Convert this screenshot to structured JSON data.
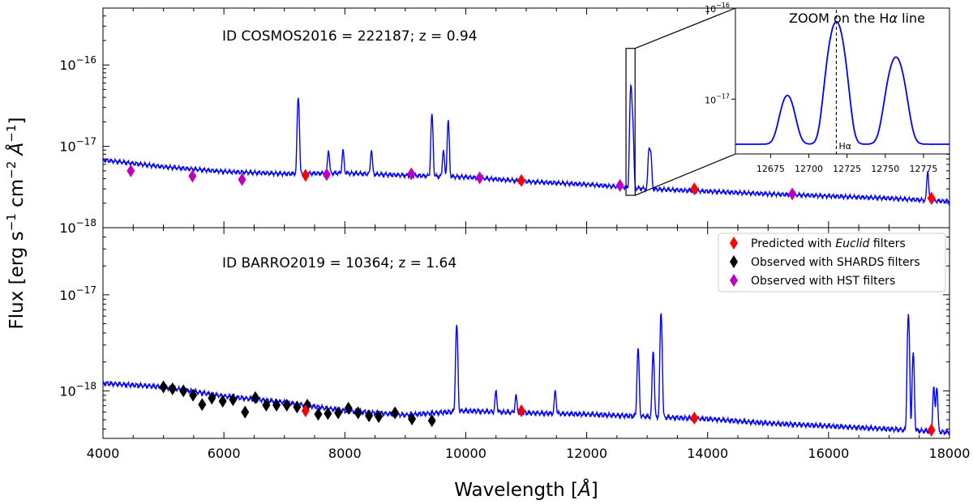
{
  "chart_data": {
    "type": "line",
    "xlabel": "Wavelength [",
    "xlabel_unit": "Å",
    "ylabel": "Flux [erg s",
    "ylabel_parts": [
      "Flux [erg s",
      "−1",
      " cm",
      "−2",
      " Å",
      "−1",
      "]"
    ],
    "xlim": [
      4000,
      18000
    ],
    "x_ticks": [
      "4000",
      "6000",
      "8000",
      "10000",
      "12000",
      "14000",
      "16000",
      "18000"
    ],
    "y_scale": "log",
    "legend": {
      "placement": "bottom-panel top-right",
      "entries": [
        {
          "label_prefix": "Predicted with ",
          "label_italic": "Euclid",
          "label_suffix": " filters",
          "color": "#ff0000"
        },
        {
          "label_prefix": "Observed with SHARDS filters",
          "label_italic": "",
          "label_suffix": "",
          "color": "#000000"
        },
        {
          "label_prefix": "Observed with HST filters",
          "label_italic": "",
          "label_suffix": "",
          "color": "#bf00bf"
        }
      ]
    },
    "panels": [
      {
        "annotation": "ID COSMOS2016 = 222187; z = 0.94",
        "ylim": [
          1e-18,
          5e-16
        ],
        "y_ticks": [
          {
            "base": "10",
            "exp": "−18",
            "value": 1e-18
          },
          {
            "base": "10",
            "exp": "−17",
            "value": 1e-17
          },
          {
            "base": "10",
            "exp": "−16",
            "value": 1e-16
          }
        ],
        "spectrum": {
          "color": "#0000ff",
          "continuum": [
            [
              4000,
              6.8e-18
            ],
            [
              5000,
              5.6e-18
            ],
            [
              6000,
              4.9e-18
            ],
            [
              7000,
              4.6e-18
            ],
            [
              8000,
              4.7e-18
            ],
            [
              9000,
              4.4e-18
            ],
            [
              10000,
              4.2e-18
            ],
            [
              11000,
              3.7e-18
            ],
            [
              12000,
              3.4e-18
            ],
            [
              13000,
              3e-18
            ],
            [
              14000,
              2.8e-18
            ],
            [
              15000,
              2.6e-18
            ],
            [
              16000,
              2.45e-18
            ],
            [
              17000,
              2.3e-18
            ],
            [
              18000,
              2.1e-18
            ]
          ],
          "emission_lines": [
            [
              7230,
              4e-17
            ],
            [
              7730,
              9e-18
            ],
            [
              7970,
              9e-18
            ],
            [
              8440,
              9e-18
            ],
            [
              9440,
              2.5e-17
            ],
            [
              9630,
              9e-18
            ],
            [
              9710,
              2.1e-17
            ],
            [
              12730,
              5.5e-17
            ],
            [
              12760,
              2e-17
            ],
            [
              13030,
              9e-18
            ],
            [
              13060,
              8e-18
            ],
            [
              17640,
              5e-18
            ]
          ]
        },
        "hst_points": [
          [
            4460,
            5e-18
          ],
          [
            5480,
            4.3e-18
          ],
          [
            6300,
            3.9e-18
          ],
          [
            7700,
            4.5e-18
          ],
          [
            9100,
            4.6e-18
          ],
          [
            10230,
            4.1e-18
          ],
          [
            12550,
            3.3e-18
          ],
          [
            15400,
            2.6e-18
          ]
        ],
        "euclid_points": [
          [
            7350,
            4.4e-18
          ],
          [
            10920,
            3.8e-18
          ],
          [
            13780,
            3e-18
          ],
          [
            17700,
            2.3e-18
          ]
        ],
        "zoom_box": {
          "x": [
            12650,
            12800
          ],
          "y": [
            2.5e-18,
            1.6e-16
          ]
        },
        "inset": {
          "title_prefix": "ZOOM on the H",
          "title_greek": "α",
          "title_suffix": " line",
          "xlim": [
            12652,
            12792
          ],
          "ylim": [
            2.5e-18,
            1e-16
          ],
          "x_ticks": [
            "12675",
            "12700",
            "12725",
            "12750",
            "12775"
          ],
          "y_ticks": [
            {
              "base": "10",
              "exp": "−17",
              "value": 1e-17
            },
            {
              "base": "10",
              "exp": "−16",
              "value": 1e-16
            }
          ],
          "marker_label": "Hα",
          "marker_x": 12718,
          "continuum": 3.2e-18,
          "peaks": [
            [
              12686,
              1.1e-17,
              4
            ],
            [
              12718,
              7.1e-17,
              4.2
            ],
            [
              12757,
              2.9e-17,
              4.6
            ]
          ]
        }
      },
      {
        "annotation": "ID BARRO2019 = 10364; z = 1.64",
        "ylim": [
          3.2e-19,
          5e-17
        ],
        "y_ticks": [
          {
            "base": "10",
            "exp": "−18",
            "value": 1e-18
          },
          {
            "base": "10",
            "exp": "−17",
            "value": 1e-17
          }
        ],
        "spectrum": {
          "color": "#0000ff",
          "continuum": [
            [
              4000,
              1.2e-18
            ],
            [
              5000,
              1.1e-18
            ],
            [
              6000,
              8.8e-19
            ],
            [
              7000,
              7.6e-19
            ],
            [
              8000,
              6.2e-19
            ],
            [
              9000,
              5.6e-19
            ],
            [
              10000,
              6.2e-19
            ],
            [
              11000,
              5.9e-19
            ],
            [
              12000,
              5.7e-19
            ],
            [
              13000,
              5.4e-19
            ],
            [
              14000,
              5.1e-19
            ],
            [
              15000,
              4.6e-19
            ],
            [
              16000,
              4.3e-19
            ],
            [
              17000,
              4e-19
            ],
            [
              18000,
              3.7e-19
            ]
          ],
          "emission_lines": [
            [
              9850,
              4.9e-18
            ],
            [
              10500,
              1e-18
            ],
            [
              10830,
              9e-19
            ],
            [
              11480,
              1e-18
            ],
            [
              12850,
              2.8e-18
            ],
            [
              13100,
              2.6e-18
            ],
            [
              13230,
              6.5e-18
            ],
            [
              17320,
              6.3e-18
            ],
            [
              17400,
              2.5e-18
            ],
            [
              17740,
              1.1e-18
            ],
            [
              17790,
              1.1e-18
            ]
          ]
        },
        "shards_points": [
          [
            5000,
            1.1e-18
          ],
          [
            5150,
            1.05e-18
          ],
          [
            5330,
            1e-18
          ],
          [
            5490,
            9e-19
          ],
          [
            5640,
            7.2e-19
          ],
          [
            5800,
            8.4e-19
          ],
          [
            5980,
            7.8e-19
          ],
          [
            6150,
            8.1e-19
          ],
          [
            6350,
            6e-19
          ],
          [
            6520,
            8.5e-19
          ],
          [
            6700,
            7.1e-19
          ],
          [
            6870,
            7.1e-19
          ],
          [
            7040,
            7.1e-19
          ],
          [
            7210,
            6.8e-19
          ],
          [
            7380,
            7.1e-19
          ],
          [
            7560,
            5.7e-19
          ],
          [
            7720,
            5.8e-19
          ],
          [
            7890,
            5.9e-19
          ],
          [
            8060,
            6.6e-19
          ],
          [
            8220,
            5.9e-19
          ],
          [
            8400,
            5.5e-19
          ],
          [
            8560,
            5.4e-19
          ],
          [
            8830,
            5.9e-19
          ],
          [
            9110,
            5.1e-19
          ],
          [
            9440,
            4.9e-19
          ]
        ],
        "euclid_points": [
          [
            7350,
            6.2e-19
          ],
          [
            10920,
            6.2e-19
          ],
          [
            13780,
            5.2e-19
          ],
          [
            17700,
            3.9e-19
          ]
        ]
      }
    ]
  }
}
